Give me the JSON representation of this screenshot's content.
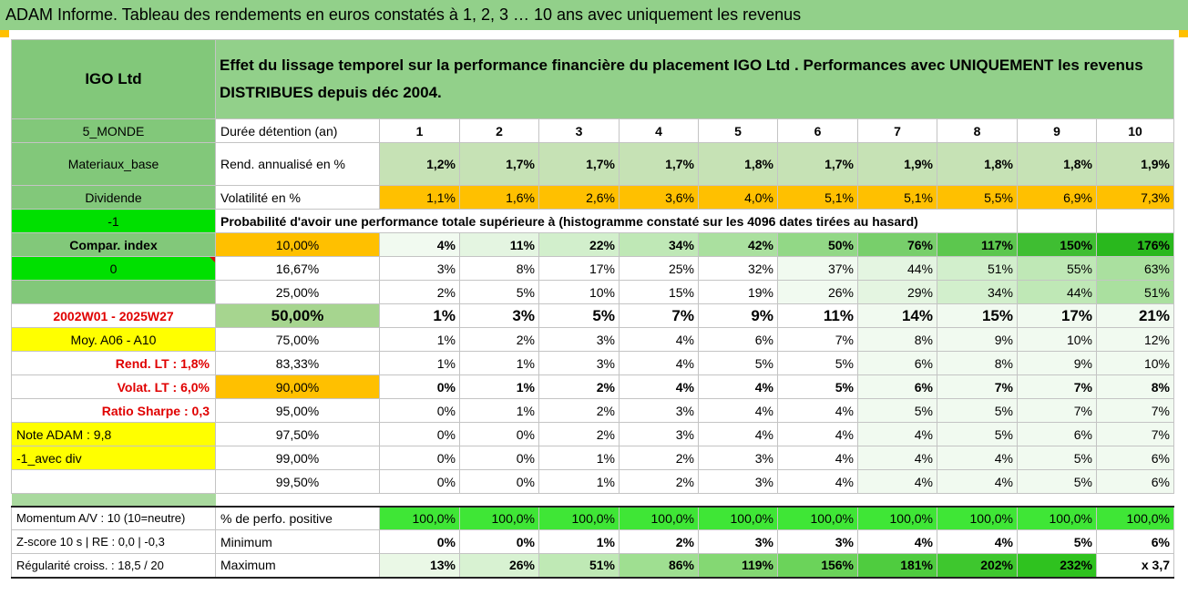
{
  "header": {
    "title": "ADAM Informe. Tableau des rendements en euros constatés à 1, 2, 3 … 10 ans avec uniquement les revenus"
  },
  "fund": {
    "name": "IGO Ltd",
    "description": "Effet du lissage temporel sur la performance financière du placement IGO Ltd . Performances avec UNIQUEMENT les revenus DISTRIBUES depuis déc 2004."
  },
  "left_panel": {
    "zone": "5_MONDE",
    "sector": "Materiaux_base",
    "category": "Dividende",
    "code": "-1",
    "compar_index_label": "Compar. index",
    "compar_value": "0",
    "period": "2002W01 - 2025W27",
    "moy_label": "Moy. A06 - A10",
    "rend_lt": "Rend. LT :   1,8%",
    "volat_lt": "Volat. LT :   6,0%",
    "sharpe": "Ratio Sharpe :   0,3",
    "note_adam": "Note ADAM : 9,8",
    "variant": "-1_avec div",
    "momentum": "Momentum A/V : 10 (10=neutre)",
    "zscore": "Z-score 10 s | RE : 0,0 | -0,3",
    "regularite": "Régularité croiss. : 18,5 / 20"
  },
  "table": {
    "duration_label": "Durée détention (an)",
    "years": [
      "1",
      "2",
      "3",
      "4",
      "5",
      "6",
      "7",
      "8",
      "9",
      "10"
    ],
    "rend_label": "Rend. annualisé en %",
    "rend": [
      "1,2%",
      "1,7%",
      "1,7%",
      "1,7%",
      "1,8%",
      "1,7%",
      "1,9%",
      "1,8%",
      "1,8%",
      "1,9%"
    ],
    "vol_label": "Volatilité en %",
    "vol": [
      "1,1%",
      "1,6%",
      "2,6%",
      "3,6%",
      "4,0%",
      "5,1%",
      "5,1%",
      "5,5%",
      "6,9%",
      "7,3%"
    ],
    "prob_label": "Probabilité d'avoir une performance totale supérieure à (histogramme constaté sur les 4096 dates tirées au hasard)",
    "prob_rows": [
      {
        "p": "10,00%",
        "v": [
          "4%",
          "11%",
          "22%",
          "34%",
          "42%",
          "50%",
          "76%",
          "117%",
          "150%",
          "176%"
        ]
      },
      {
        "p": "16,67%",
        "v": [
          "3%",
          "8%",
          "17%",
          "25%",
          "32%",
          "37%",
          "44%",
          "51%",
          "55%",
          "63%"
        ]
      },
      {
        "p": "25,00%",
        "v": [
          "2%",
          "5%",
          "10%",
          "15%",
          "19%",
          "26%",
          "29%",
          "34%",
          "44%",
          "51%"
        ]
      },
      {
        "p": "50,00%",
        "v": [
          "1%",
          "3%",
          "5%",
          "7%",
          "9%",
          "11%",
          "14%",
          "15%",
          "17%",
          "21%"
        ]
      },
      {
        "p": "75,00%",
        "v": [
          "1%",
          "2%",
          "3%",
          "4%",
          "6%",
          "7%",
          "8%",
          "9%",
          "10%",
          "12%"
        ]
      },
      {
        "p": "83,33%",
        "v": [
          "1%",
          "1%",
          "3%",
          "4%",
          "5%",
          "5%",
          "6%",
          "8%",
          "9%",
          "10%"
        ]
      },
      {
        "p": "90,00%",
        "v": [
          "0%",
          "1%",
          "2%",
          "4%",
          "4%",
          "5%",
          "6%",
          "7%",
          "7%",
          "8%"
        ]
      },
      {
        "p": "95,00%",
        "v": [
          "0%",
          "1%",
          "2%",
          "3%",
          "4%",
          "4%",
          "5%",
          "5%",
          "7%",
          "7%"
        ]
      },
      {
        "p": "97,50%",
        "v": [
          "0%",
          "0%",
          "2%",
          "3%",
          "4%",
          "4%",
          "4%",
          "5%",
          "6%",
          "7%"
        ]
      },
      {
        "p": "99,00%",
        "v": [
          "0%",
          "0%",
          "1%",
          "2%",
          "3%",
          "4%",
          "4%",
          "4%",
          "5%",
          "6%"
        ]
      },
      {
        "p": "99,50%",
        "v": [
          "0%",
          "0%",
          "1%",
          "2%",
          "3%",
          "4%",
          "4%",
          "4%",
          "5%",
          "6%"
        ]
      }
    ],
    "pos_label": "% de perfo. positive",
    "pos": [
      "100,0%",
      "100,0%",
      "100,0%",
      "100,0%",
      "100,0%",
      "100,0%",
      "100,0%",
      "100,0%",
      "100,0%",
      "100,0%"
    ],
    "min_label": "Minimum",
    "min": [
      "0%",
      "0%",
      "1%",
      "2%",
      "3%",
      "3%",
      "4%",
      "4%",
      "5%",
      "6%"
    ],
    "max_label": "Maximum",
    "max": [
      "13%",
      "26%",
      "51%",
      "86%",
      "119%",
      "156%",
      "181%",
      "202%",
      "232%",
      "x 3,7"
    ]
  },
  "colors": {
    "header_green": "#92d08a",
    "orange": "#ffc000",
    "bright_green": "#00e000",
    "yellow": "#ffff00",
    "red_text": "#e00000"
  }
}
